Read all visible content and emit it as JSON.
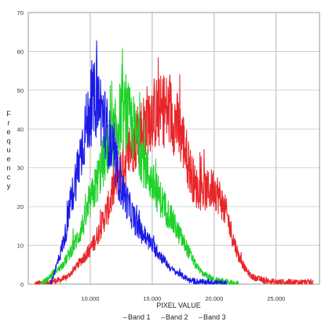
{
  "chart_data": {
    "type": "line",
    "title": "",
    "xlabel": "PIXEL VALUE",
    "ylabel": "Frequency",
    "xlim": [
      5000,
      28500
    ],
    "ylim": [
      0,
      70
    ],
    "x_ticks": [
      10000,
      15000,
      20000,
      25000
    ],
    "x_tick_labels": [
      "10.000",
      "15.000",
      "20.000",
      "25.000"
    ],
    "y_ticks": [
      0,
      10,
      20,
      30,
      40,
      50,
      60,
      70
    ],
    "y_tick_labels": [
      "0",
      "10",
      "20",
      "30",
      "40",
      "50",
      "60",
      "70"
    ],
    "grid": true,
    "legend_position": "bottom",
    "series": [
      {
        "name": "Band 1",
        "color": "#e8262a",
        "points": [
          [
            5500,
            0
          ],
          [
            6500,
            0.5
          ],
          [
            7500,
            1
          ],
          [
            8000,
            1.5
          ],
          [
            8500,
            3
          ],
          [
            9000,
            5
          ],
          [
            9500,
            7
          ],
          [
            10000,
            9
          ],
          [
            10500,
            12
          ],
          [
            11000,
            16
          ],
          [
            11500,
            20
          ],
          [
            12000,
            26
          ],
          [
            12500,
            30
          ],
          [
            13000,
            33
          ],
          [
            13500,
            37
          ],
          [
            14000,
            39
          ],
          [
            14500,
            42
          ],
          [
            15000,
            44
          ],
          [
            15500,
            44
          ],
          [
            16000,
            45
          ],
          [
            16500,
            44
          ],
          [
            17000,
            41
          ],
          [
            17500,
            37
          ],
          [
            18000,
            30
          ],
          [
            18500,
            25
          ],
          [
            19000,
            24
          ],
          [
            19500,
            24
          ],
          [
            20000,
            25
          ],
          [
            20500,
            22
          ],
          [
            21000,
            18
          ],
          [
            21500,
            12
          ],
          [
            22000,
            7
          ],
          [
            22500,
            4
          ],
          [
            23000,
            2
          ],
          [
            24000,
            1
          ],
          [
            25000,
            0.5
          ],
          [
            26000,
            0.5
          ],
          [
            27000,
            0.5
          ],
          [
            28000,
            0.5
          ]
        ]
      },
      {
        "name": "Band 2",
        "color": "#1fd12a",
        "points": [
          [
            6000,
            0
          ],
          [
            6500,
            1
          ],
          [
            7000,
            3
          ],
          [
            7500,
            4
          ],
          [
            8000,
            6
          ],
          [
            8500,
            9
          ],
          [
            9000,
            12
          ],
          [
            9500,
            16
          ],
          [
            10000,
            21
          ],
          [
            10500,
            26
          ],
          [
            11000,
            31
          ],
          [
            11500,
            36
          ],
          [
            12000,
            39
          ],
          [
            12500,
            44
          ],
          [
            13000,
            43
          ],
          [
            13500,
            40
          ],
          [
            14000,
            35
          ],
          [
            14500,
            30
          ],
          [
            15000,
            26
          ],
          [
            15500,
            23
          ],
          [
            16000,
            20
          ],
          [
            16500,
            17
          ],
          [
            17000,
            14
          ],
          [
            17500,
            11
          ],
          [
            18000,
            8
          ],
          [
            18500,
            5
          ],
          [
            19000,
            3
          ],
          [
            19500,
            2
          ],
          [
            20000,
            1
          ],
          [
            21000,
            0.5
          ],
          [
            22000,
            0
          ]
        ]
      },
      {
        "name": "Band 3",
        "color": "#1a1ae8",
        "points": [
          [
            6800,
            0
          ],
          [
            7200,
            4
          ],
          [
            7600,
            8
          ],
          [
            8000,
            13
          ],
          [
            8500,
            22
          ],
          [
            9000,
            30
          ],
          [
            9500,
            38
          ],
          [
            10000,
            45
          ],
          [
            10500,
            48
          ],
          [
            11000,
            44
          ],
          [
            11500,
            38
          ],
          [
            12000,
            31
          ],
          [
            12500,
            25
          ],
          [
            13000,
            21
          ],
          [
            13500,
            17
          ],
          [
            14000,
            14
          ],
          [
            14500,
            12
          ],
          [
            15000,
            10
          ],
          [
            15500,
            8
          ],
          [
            16000,
            6
          ],
          [
            16500,
            4
          ],
          [
            17000,
            3
          ],
          [
            17500,
            2
          ],
          [
            18000,
            1
          ],
          [
            19000,
            0.5
          ],
          [
            20000,
            0.5
          ],
          [
            21000,
            0
          ]
        ]
      }
    ]
  },
  "legend": {
    "items": [
      {
        "marker": "–",
        "label": "Band 1",
        "color": "#e8262a"
      },
      {
        "marker": "–",
        "label": "Band 2",
        "color": "#1fd12a"
      },
      {
        "marker": "–",
        "label": "Band 3",
        "color": "#1a1ae8"
      }
    ]
  }
}
